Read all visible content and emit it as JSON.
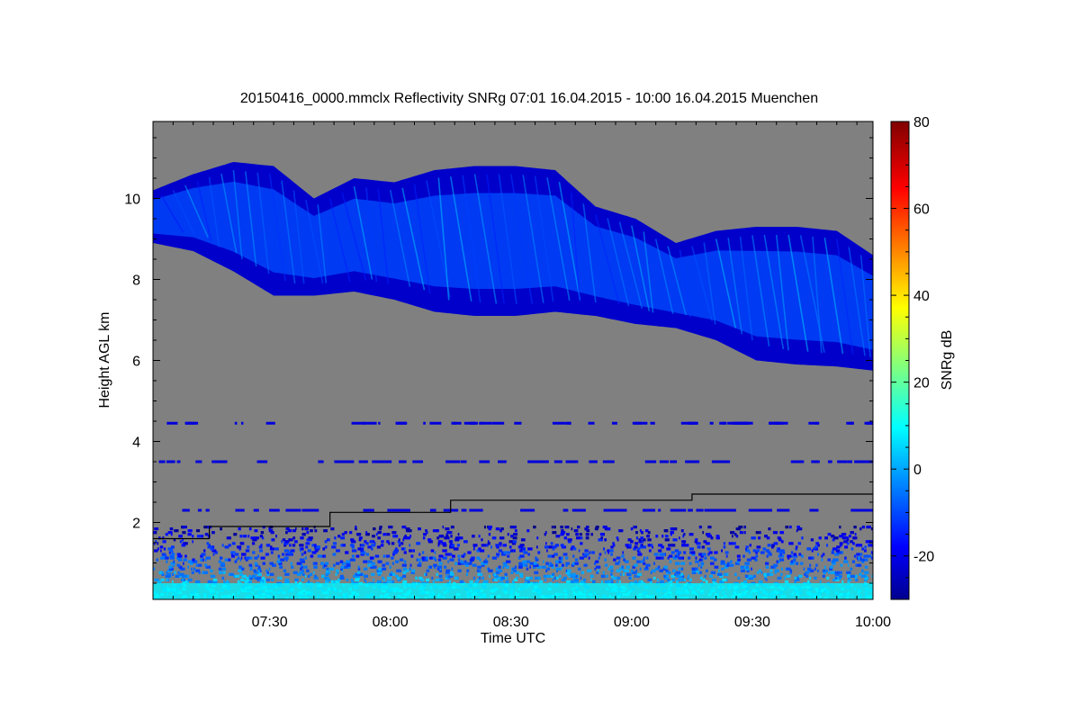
{
  "chart_data": {
    "type": "heatmap",
    "title": "20150416_0000.mmclx Reflectivity SNRg   07:01 16.04.2015 - 10:00 16.04.2015 Muenchen",
    "xlabel": "Time UTC",
    "ylabel": "Height AGL km",
    "x_range": [
      "07:01",
      "10:00"
    ],
    "x_ticks": [
      "07:30",
      "08:00",
      "08:30",
      "09:00",
      "09:30",
      "10:00"
    ],
    "ylim": [
      0.1,
      11.9
    ],
    "y_ticks": [
      2,
      4,
      6,
      8,
      10
    ],
    "colorbar": {
      "label": "SNRg dB",
      "range": [
        -30,
        80
      ],
      "ticks": [
        -20,
        0,
        20,
        40,
        60,
        80
      ],
      "colormap": "jet"
    },
    "background_color": "#808080",
    "cloud_layer": {
      "time_min": [
        0,
        10,
        20,
        30,
        40,
        50,
        60,
        70,
        80,
        90,
        100,
        110,
        120,
        130,
        140,
        150,
        160,
        170,
        179
      ],
      "top_km": [
        10.2,
        10.6,
        10.9,
        10.8,
        10.0,
        10.5,
        10.4,
        10.7,
        10.8,
        10.8,
        10.7,
        9.8,
        9.5,
        8.9,
        9.2,
        9.3,
        9.3,
        9.2,
        8.6
      ],
      "base_km": [
        8.9,
        8.7,
        8.2,
        7.6,
        7.6,
        7.7,
        7.5,
        7.2,
        7.1,
        7.1,
        7.2,
        7.1,
        6.9,
        6.8,
        6.5,
        6.0,
        5.9,
        5.85,
        5.75
      ],
      "peak_snr_db": 5
    },
    "boundary_layer_line": {
      "time_min": [
        0,
        14,
        14,
        44,
        44,
        74,
        74,
        134,
        134,
        179
      ],
      "height_km": [
        1.6,
        1.6,
        1.9,
        1.9,
        2.25,
        2.25,
        2.55,
        2.55,
        2.7,
        2.7
      ]
    },
    "clutter_bands_km": [
      4.45,
      3.5,
      2.3
    ],
    "low_noise_top_km": 1.9
  }
}
